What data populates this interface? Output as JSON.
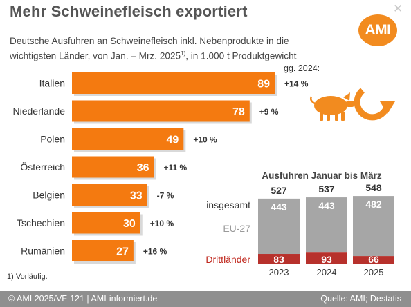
{
  "header": {
    "title": "Mehr Schweinefleisch exportiert",
    "subtitle_line1": "Deutsche Ausfuhren an Schweinefleisch inkl. Nebenprodukte in die",
    "subtitle_line2_a": "wichtigsten Länder, von Jan. – Mrz. 2025",
    "subtitle_sup": "1)",
    "subtitle_line2_b": ", in 1.000 t Produktgewicht",
    "close_icon": "close-icon",
    "logo_text": "AMI"
  },
  "colors": {
    "orange": "#f47a10",
    "gray_bar": "#a6a6a6",
    "red_bar": "#b7312c",
    "red_text": "#c0281e",
    "orange_icon": "#f28b1f"
  },
  "prev_year_label": "gg. 2024:",
  "chart_data": [
    {
      "type": "bar",
      "orientation": "horizontal",
      "categories": [
        "Italien",
        "Niederlande",
        "Polen",
        "Österreich",
        "Belgien",
        "Tschechien",
        "Rumänien"
      ],
      "values": [
        89,
        78,
        49,
        36,
        33,
        30,
        27
      ],
      "changes": [
        "+14 %",
        "+9 %",
        "+10 %",
        "+11 %",
        "-7 %",
        "+10 %",
        "+16 %"
      ],
      "unit": "1.000 t"
    },
    {
      "type": "bar",
      "stacked": true,
      "title": "Ausfuhren Januar bis März",
      "categories": [
        "2023",
        "2024",
        "2025"
      ],
      "totals": [
        527,
        537,
        548
      ],
      "series": [
        {
          "name": "EU-27",
          "values": [
            443,
            443,
            482
          ]
        },
        {
          "name": "Drittländer",
          "values": [
            83,
            93,
            66
          ]
        }
      ],
      "total_label": "insgesamt"
    }
  ],
  "icons": [
    "pig-icon",
    "export-arrow-icon"
  ],
  "footnote": "1) Vorläufig.",
  "footer": {
    "left": "© AMI 2025/VF-121 | AMI-informiert.de",
    "right": "Quelle: AMI; Destatis"
  }
}
